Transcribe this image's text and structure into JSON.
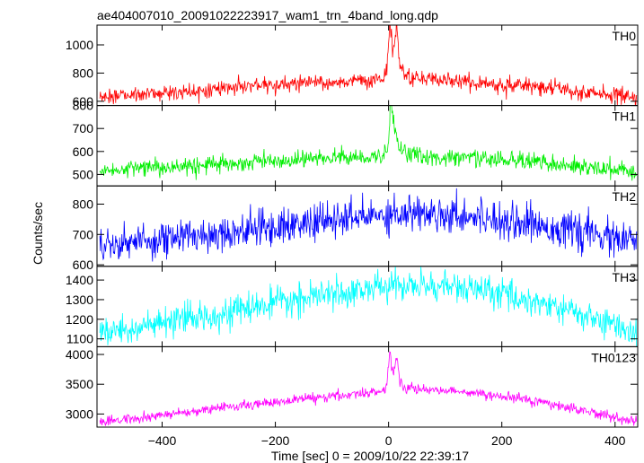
{
  "chart_data": {
    "type": "line",
    "title": "ae404007010_20091022223917_wam1_trn_4band_long.qdp",
    "xlabel": "Time [sec] 0 = 2009/10/22 22:39:17",
    "ylabel": "Counts/sec",
    "xlim": [
      -515,
      440
    ],
    "xticks": [
      -400,
      -200,
      0,
      200,
      400
    ],
    "grid": false,
    "sample_step": 1,
    "panels": [
      {
        "name": "TH0",
        "color": "#ff0000",
        "ylim": [
          570,
          1140
        ],
        "yticks": [
          600,
          800,
          1000
        ],
        "baseline": [
          [
            -510,
            628
          ],
          [
            -400,
            660
          ],
          [
            -200,
            715
          ],
          [
            -50,
            745
          ],
          [
            0,
            760
          ],
          [
            30,
            760
          ],
          [
            100,
            750
          ],
          [
            200,
            720
          ],
          [
            300,
            690
          ],
          [
            430,
            628
          ]
        ],
        "noise": 28,
        "features": [
          {
            "x": 2,
            "width": 3,
            "height": 420
          },
          {
            "x": 14,
            "width": 3,
            "height": 330
          },
          {
            "x": 8,
            "width": 6,
            "height": 120
          },
          {
            "x": 22,
            "width": 10,
            "height": 60
          }
        ]
      },
      {
        "name": "TH1",
        "color": "#00ee00",
        "ylim": [
          450,
          800
        ],
        "yticks": [
          500,
          600,
          700,
          800
        ],
        "baseline": [
          [
            -510,
            515
          ],
          [
            -400,
            530
          ],
          [
            -200,
            560
          ],
          [
            -50,
            575
          ],
          [
            0,
            580
          ],
          [
            50,
            580
          ],
          [
            200,
            565
          ],
          [
            300,
            545
          ],
          [
            430,
            510
          ]
        ],
        "noise": 19,
        "features": [
          {
            "x": 4,
            "width": 3,
            "height": 210
          },
          {
            "x": 10,
            "width": 5,
            "height": 90
          },
          {
            "x": 25,
            "width": 12,
            "height": 30
          }
        ]
      },
      {
        "name": "TH2",
        "color": "#0000ff",
        "ylim": [
          595,
          860
        ],
        "yticks": [
          600,
          700,
          800
        ],
        "baseline": [
          [
            -510,
            665
          ],
          [
            -400,
            685
          ],
          [
            -200,
            725
          ],
          [
            -50,
            755
          ],
          [
            0,
            770
          ],
          [
            100,
            770
          ],
          [
            200,
            750
          ],
          [
            300,
            720
          ],
          [
            430,
            675
          ]
        ],
        "noise": 30,
        "features": []
      },
      {
        "name": "TH3",
        "color": "#00ffff",
        "ylim": [
          1060,
          1470
        ],
        "yticks": [
          1100,
          1200,
          1300,
          1400
        ],
        "baseline": [
          [
            -510,
            1130
          ],
          [
            -400,
            1175
          ],
          [
            -200,
            1280
          ],
          [
            -50,
            1350
          ],
          [
            0,
            1370
          ],
          [
            100,
            1370
          ],
          [
            200,
            1330
          ],
          [
            300,
            1260
          ],
          [
            430,
            1140
          ]
        ],
        "noise": 38,
        "features": []
      },
      {
        "name": "TH0123",
        "color": "#ff00ff",
        "ylim": [
          2780,
          4130
        ],
        "yticks": [
          3000,
          3500,
          4000
        ],
        "baseline": [
          [
            -510,
            2860
          ],
          [
            -400,
            2985
          ],
          [
            -200,
            3200
          ],
          [
            -50,
            3340
          ],
          [
            0,
            3400
          ],
          [
            50,
            3420
          ],
          [
            100,
            3400
          ],
          [
            200,
            3300
          ],
          [
            300,
            3150
          ],
          [
            430,
            2880
          ]
        ],
        "noise": 42,
        "features": [
          {
            "x": 2,
            "width": 3,
            "height": 650
          },
          {
            "x": 14,
            "width": 3,
            "height": 500
          },
          {
            "x": 8,
            "width": 6,
            "height": 220
          },
          {
            "x": 25,
            "width": 10,
            "height": 80
          }
        ]
      }
    ]
  }
}
